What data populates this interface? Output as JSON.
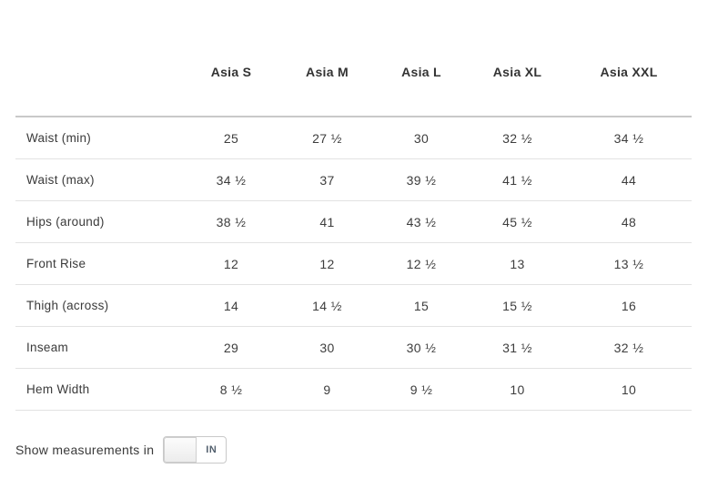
{
  "size_chart": {
    "columns": [
      "Asia S",
      "Asia M",
      "Asia L",
      "Asia XL",
      "Asia XXL"
    ],
    "rows": [
      {
        "label": "Waist (min)",
        "values": [
          "25",
          "27 ½",
          "30",
          "32 ½",
          "34 ½"
        ]
      },
      {
        "label": "Waist (max)",
        "values": [
          "34 ½",
          "37",
          "39 ½",
          "41 ½",
          "44"
        ]
      },
      {
        "label": "Hips (around)",
        "values": [
          "38 ½",
          "41",
          "43 ½",
          "45 ½",
          "48"
        ]
      },
      {
        "label": "Front Rise",
        "values": [
          "12",
          "12",
          "12 ½",
          "13",
          "13 ½"
        ]
      },
      {
        "label": "Thigh (across)",
        "values": [
          "14",
          "14 ½",
          "15",
          "15 ½",
          "16"
        ]
      },
      {
        "label": "Inseam",
        "values": [
          "29",
          "30",
          "30 ½",
          "31 ½",
          "32 ½"
        ]
      },
      {
        "label": "Hem Width",
        "values": [
          "8 ½",
          "9",
          "9 ½",
          "10",
          "10"
        ]
      }
    ]
  },
  "footer": {
    "label": "Show measurements in",
    "unit_toggle": {
      "selected_unit": "IN"
    }
  },
  "colors": {
    "text": "#3a3a3a",
    "header_text": "#333333",
    "row_divider": "#e2e2e2",
    "header_divider": "#c9c9c9",
    "toggle_border": "#c9c9c9",
    "toggle_unit_label": "#53606e"
  }
}
